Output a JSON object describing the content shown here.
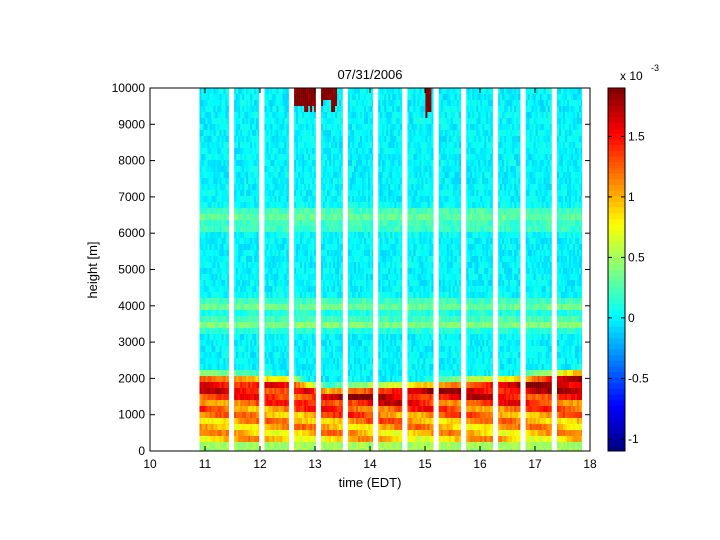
{
  "chart_data": {
    "type": "heatmap",
    "title": "07/31/2006",
    "xlabel": "time (EDT)",
    "ylabel": "height [m]",
    "xlim": [
      10,
      18
    ],
    "ylim": [
      0,
      10000
    ],
    "x_ticks": [
      "10",
      "11",
      "12",
      "13",
      "14",
      "15",
      "16",
      "17",
      "18"
    ],
    "y_ticks": [
      "0",
      "1000",
      "2000",
      "3000",
      "4000",
      "5000",
      "6000",
      "7000",
      "8000",
      "9000",
      "10000"
    ],
    "colorbar": {
      "multiplier_label": "x 10",
      "multiplier_exponent": "-3",
      "range": [
        -1.1,
        1.9
      ],
      "ticks": [
        "-1",
        "-0.5",
        "0",
        "0.5",
        "1",
        "1.5"
      ],
      "colormap": "jet"
    },
    "data_segments": [
      {
        "start": 10.9,
        "end": 11.43
      },
      {
        "start": 11.53,
        "end": 11.98
      },
      {
        "start": 12.08,
        "end": 12.52
      },
      {
        "start": 12.62,
        "end": 13.01
      },
      {
        "start": 13.11,
        "end": 13.5
      },
      {
        "start": 13.6,
        "end": 14.05
      },
      {
        "start": 14.15,
        "end": 14.58
      },
      {
        "start": 14.68,
        "end": 15.15
      },
      {
        "start": 15.25,
        "end": 15.65
      },
      {
        "start": 15.75,
        "end": 16.23
      },
      {
        "start": 16.33,
        "end": 16.73
      },
      {
        "start": 16.83,
        "end": 17.3
      },
      {
        "start": 17.4,
        "end": 17.85
      }
    ],
    "field": {
      "background": 0.0,
      "upper_levels": -0.25,
      "aerosol_layers": [
        {
          "height_m": 6500,
          "value": 0.35
        },
        {
          "height_m": 6200,
          "value": 0.25
        },
        {
          "height_m": 4000,
          "value": 0.35
        },
        {
          "height_m": 3500,
          "value": 0.4
        }
      ],
      "boundary_layer": [
        {
          "time": 10.9,
          "top_m": 1900,
          "value": 1.7
        },
        {
          "time": 12.5,
          "top_m": 1800,
          "value": 1.6
        },
        {
          "time": 13.2,
          "top_m": 1500,
          "value": 1.7
        },
        {
          "time": 14.5,
          "top_m": 1600,
          "value": 1.8
        },
        {
          "time": 15.5,
          "top_m": 1700,
          "value": 1.7
        },
        {
          "time": 16.6,
          "top_m": 1800,
          "value": 1.8
        },
        {
          "time": 17.85,
          "top_m": 2000,
          "value": 1.9
        }
      ],
      "upper_patches": [
        {
          "time_start": 12.6,
          "time_end": 13.4,
          "height_m": 9800,
          "value": 1.9
        },
        {
          "time_start": 15.0,
          "time_end": 15.1,
          "height_m": 9500,
          "value": 1.9
        }
      ]
    }
  }
}
